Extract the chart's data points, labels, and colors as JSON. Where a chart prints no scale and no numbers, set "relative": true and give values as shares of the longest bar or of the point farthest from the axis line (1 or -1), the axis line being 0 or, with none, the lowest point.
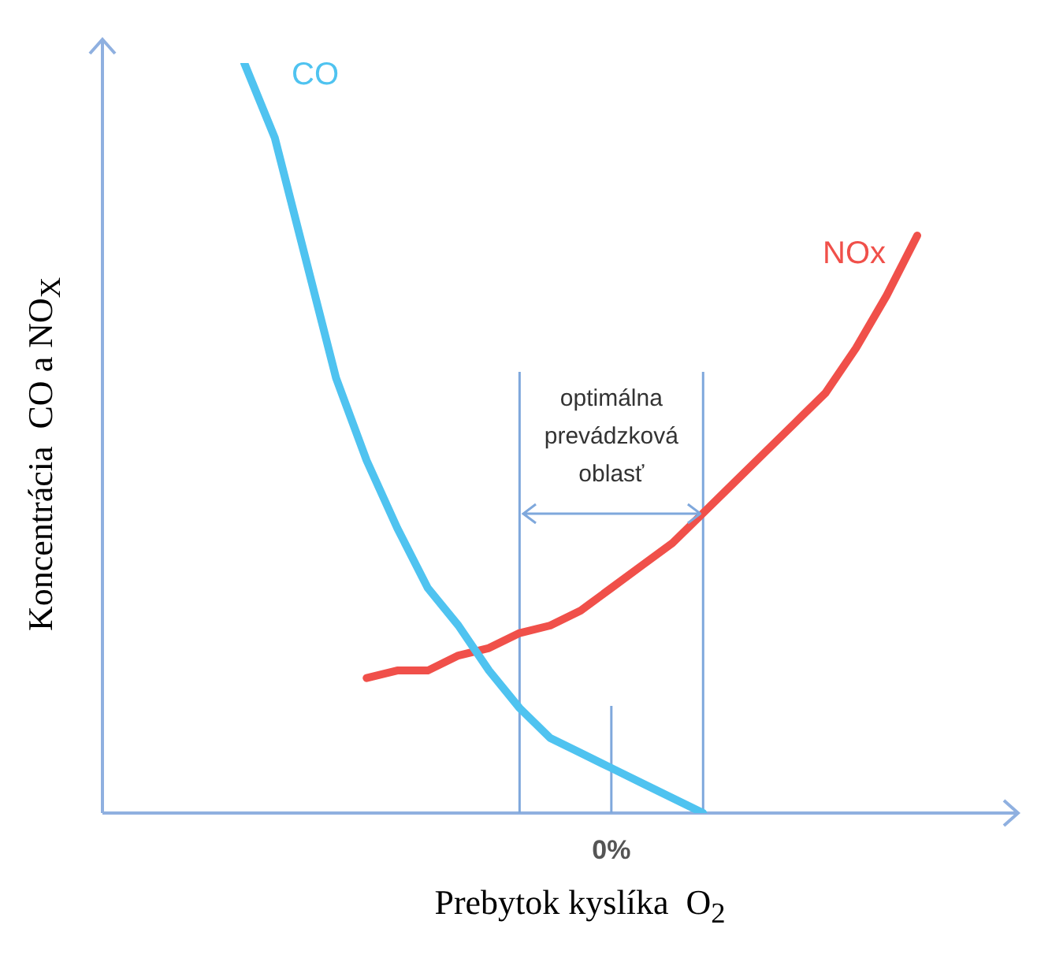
{
  "chart_data": {
    "type": "line",
    "relative": true,
    "xlabel": "Prebytok kyslíka  O$_{2}$",
    "ylabel": "Koncentrácia  CO a NO$_{X}$",
    "categories": [
      null,
      null,
      null,
      null,
      null,
      null,
      null,
      null,
      null,
      null,
      null,
      null,
      null,
      null,
      null,
      null,
      null,
      null,
      null,
      null,
      null,
      null,
      null
    ],
    "annotations": [
      "optimálna prevádzková oblasť",
      "0%"
    ],
    "legend": false,
    "marker": "none",
    "line_style": "solid",
    "series": [
      {
        "name": "CO",
        "color": "#4fc3f0",
        "values": [
          1.0,
          0.9,
          0.74,
          0.58,
          0.47,
          0.38,
          0.3,
          0.25,
          0.19,
          0.14,
          0.1,
          0.08,
          0.06,
          0.04,
          0.02,
          0.0,
          null,
          null,
          null,
          null,
          null,
          null,
          null
        ]
      },
      {
        "name": "NOx",
        "color": "#f0504a",
        "values": [
          null,
          null,
          null,
          null,
          0.18,
          0.19,
          0.19,
          0.21,
          0.22,
          0.24,
          0.25,
          0.27,
          0.3,
          0.33,
          0.36,
          0.4,
          0.44,
          0.48,
          0.52,
          0.56,
          0.62,
          0.69,
          0.77
        ]
      }
    ]
  }
}
